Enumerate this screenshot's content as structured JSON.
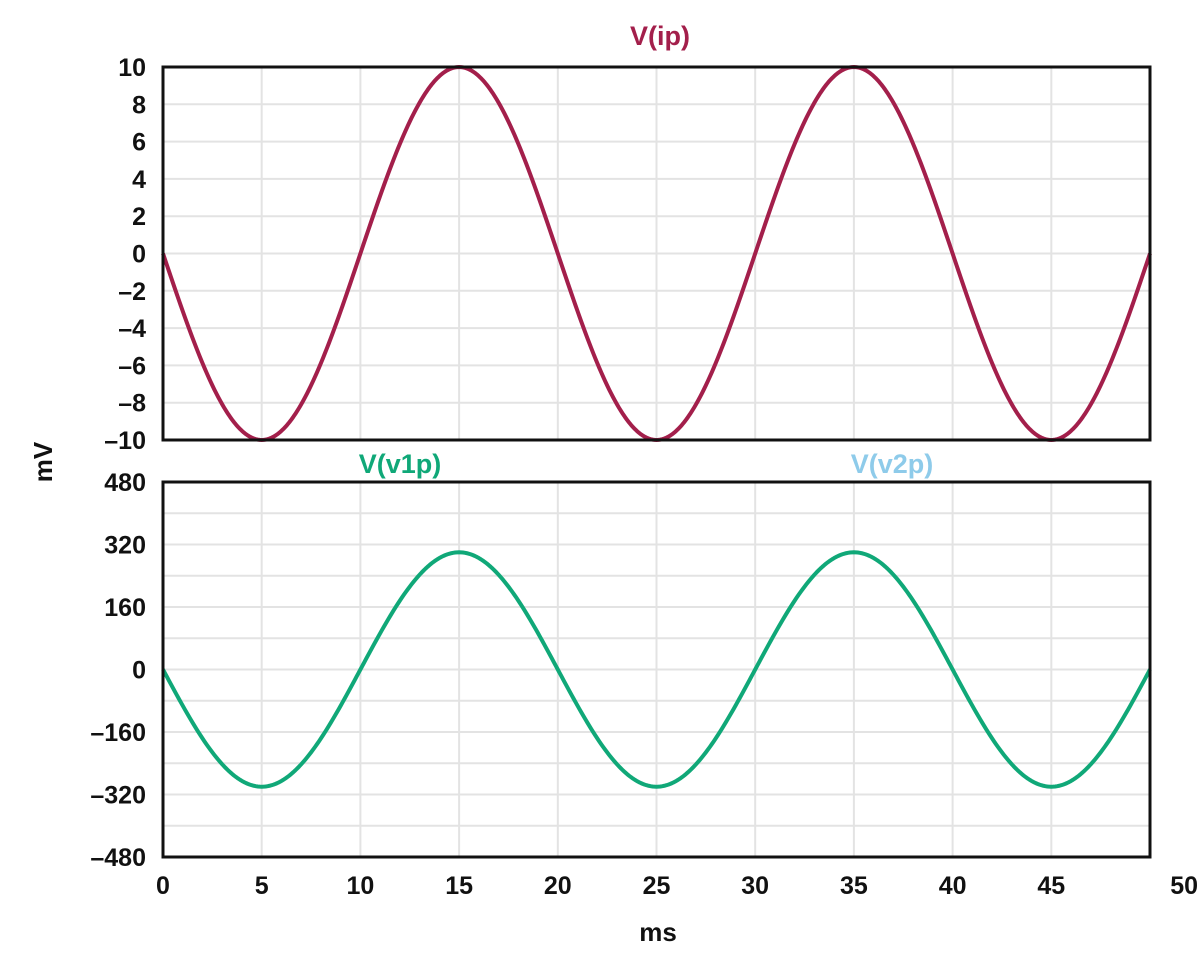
{
  "chart_data": [
    {
      "type": "line",
      "panel": "top",
      "title": "V(ip)",
      "xlabel": "ms",
      "ylabel": "mV",
      "xlim": [
        0,
        50
      ],
      "ylim": [
        -10,
        10
      ],
      "x_ticks": [
        0,
        5,
        10,
        15,
        20,
        25,
        30,
        35,
        40,
        45,
        50
      ],
      "y_tick_labels": [
        "10",
        "8",
        "6",
        "4",
        "2",
        "0",
        "–2",
        "–4",
        "–6",
        "–8",
        "–10"
      ],
      "y_tick_values": [
        10,
        8,
        6,
        4,
        2,
        0,
        -2,
        -4,
        -6,
        -8,
        -10
      ],
      "grid": true,
      "series": [
        {
          "name": "V(ip)",
          "color": "#a31f4b",
          "shape": "sine",
          "amplitude": 10,
          "period_ms": 20,
          "x": [
            0,
            5,
            10,
            15,
            20,
            25,
            30,
            35,
            40,
            45,
            50
          ],
          "y": [
            0,
            -10,
            0,
            10,
            0,
            -10,
            0,
            10,
            0,
            -10,
            0
          ]
        }
      ]
    },
    {
      "type": "line",
      "panel": "bottom",
      "xlabel": "ms",
      "ylabel": "mV",
      "xlim": [
        0,
        50
      ],
      "ylim": [
        -480,
        480
      ],
      "x_ticks": [
        0,
        5,
        10,
        15,
        20,
        25,
        30,
        35,
        40,
        45,
        50
      ],
      "y_tick_labels": [
        "480",
        "320",
        "160",
        "0",
        "–160",
        "–320",
        "–480"
      ],
      "y_tick_values": [
        480,
        320,
        160,
        0,
        -160,
        -320,
        -480
      ],
      "grid": true,
      "legend": [
        {
          "name": "V(v1p)",
          "color": "#10a878"
        },
        {
          "name": "V(v2p)",
          "color": "#8ecbea"
        }
      ],
      "series": [
        {
          "name": "V(v1p)",
          "color": "#10a878",
          "shape": "sine",
          "amplitude": 300,
          "period_ms": 20,
          "x": [
            0,
            5,
            10,
            15,
            20,
            25,
            30,
            35,
            40,
            45,
            50
          ],
          "y": [
            0,
            -300,
            0,
            300,
            0,
            -300,
            0,
            300,
            0,
            -300,
            0
          ]
        }
      ]
    }
  ]
}
